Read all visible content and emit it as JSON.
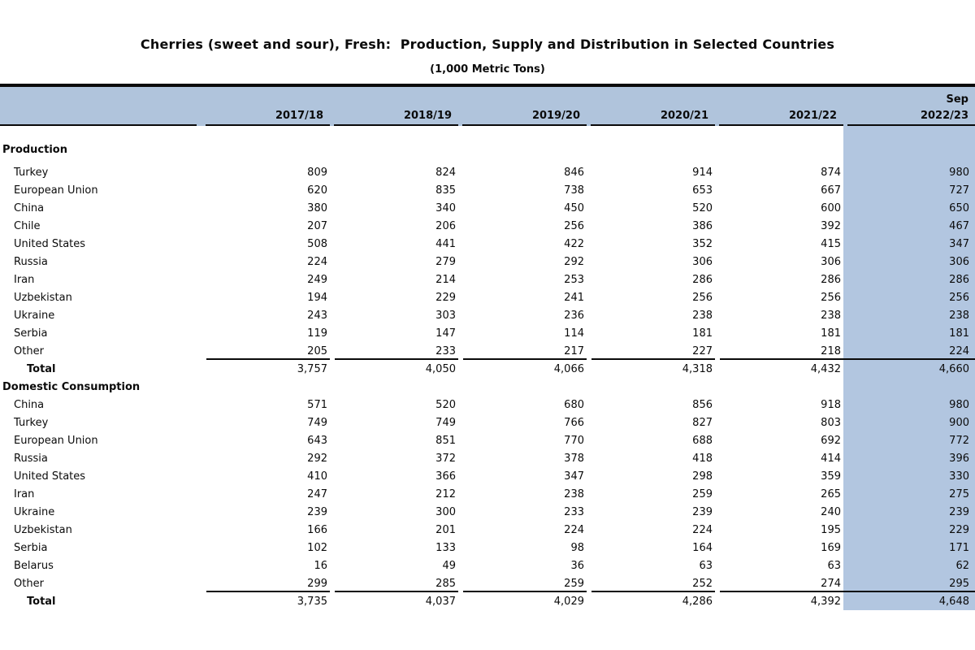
{
  "title": "Cherries (sweet and sour), Fresh:  Production, Supply and Distribution in Selected Countries",
  "subtitle": "(1,000 Metric Tons)",
  "colors": {
    "header_band_bg": "#b0c4dc",
    "highlight_column_bg": "#b2c6e0",
    "rule_color": "#0a0a0a"
  },
  "chart_data": {
    "type": "table",
    "title": "Cherries (sweet and sour), Fresh: Production, Supply and Distribution in Selected Countries",
    "units": "1,000 Metric Tons",
    "columns": [
      "2017/18",
      "2018/19",
      "2019/20",
      "2020/21",
      "2021/22",
      "2022/23"
    ],
    "current_column_note": "Sep",
    "sections": [
      {
        "name": "Production",
        "rows": [
          {
            "label": "Turkey",
            "values": [
              "809",
              "824",
              "846",
              "914",
              "874",
              "980"
            ]
          },
          {
            "label": "European Union",
            "values": [
              "620",
              "835",
              "738",
              "653",
              "667",
              "727"
            ]
          },
          {
            "label": "China",
            "values": [
              "380",
              "340",
              "450",
              "520",
              "600",
              "650"
            ]
          },
          {
            "label": "Chile",
            "values": [
              "207",
              "206",
              "256",
              "386",
              "392",
              "467"
            ]
          },
          {
            "label": "United States",
            "values": [
              "508",
              "441",
              "422",
              "352",
              "415",
              "347"
            ]
          },
          {
            "label": "Russia",
            "values": [
              "224",
              "279",
              "292",
              "306",
              "306",
              "306"
            ]
          },
          {
            "label": "Iran",
            "values": [
              "249",
              "214",
              "253",
              "286",
              "286",
              "286"
            ]
          },
          {
            "label": "Uzbekistan",
            "values": [
              "194",
              "229",
              "241",
              "256",
              "256",
              "256"
            ]
          },
          {
            "label": "Ukraine",
            "values": [
              "243",
              "303",
              "236",
              "238",
              "238",
              "238"
            ]
          },
          {
            "label": "Serbia",
            "values": [
              "119",
              "147",
              "114",
              "181",
              "181",
              "181"
            ]
          },
          {
            "label": "Other",
            "values": [
              "205",
              "233",
              "217",
              "227",
              "218",
              "224"
            ]
          }
        ],
        "total": {
          "label": "Total",
          "values": [
            "3,757",
            "4,050",
            "4,066",
            "4,318",
            "4,432",
            "4,660"
          ]
        }
      },
      {
        "name": "Domestic Consumption",
        "rows": [
          {
            "label": "China",
            "values": [
              "571",
              "520",
              "680",
              "856",
              "918",
              "980"
            ]
          },
          {
            "label": "Turkey",
            "values": [
              "749",
              "749",
              "766",
              "827",
              "803",
              "900"
            ]
          },
          {
            "label": "European Union",
            "values": [
              "643",
              "851",
              "770",
              "688",
              "692",
              "772"
            ]
          },
          {
            "label": "Russia",
            "values": [
              "292",
              "372",
              "378",
              "418",
              "414",
              "396"
            ]
          },
          {
            "label": "United States",
            "values": [
              "410",
              "366",
              "347",
              "298",
              "359",
              "330"
            ]
          },
          {
            "label": "Iran",
            "values": [
              "247",
              "212",
              "238",
              "259",
              "265",
              "275"
            ]
          },
          {
            "label": "Ukraine",
            "values": [
              "239",
              "300",
              "233",
              "239",
              "240",
              "239"
            ]
          },
          {
            "label": "Uzbekistan",
            "values": [
              "166",
              "201",
              "224",
              "224",
              "195",
              "229"
            ]
          },
          {
            "label": "Serbia",
            "values": [
              "102",
              "133",
              "98",
              "164",
              "169",
              "171"
            ]
          },
          {
            "label": "Belarus",
            "values": [
              "16",
              "49",
              "36",
              "63",
              "63",
              "62"
            ]
          },
          {
            "label": "Other",
            "values": [
              "299",
              "285",
              "259",
              "252",
              "274",
              "295"
            ]
          }
        ],
        "total": {
          "label": "Total",
          "values": [
            "3,735",
            "4,037",
            "4,029",
            "4,286",
            "4,392",
            "4,648"
          ]
        }
      }
    ]
  }
}
